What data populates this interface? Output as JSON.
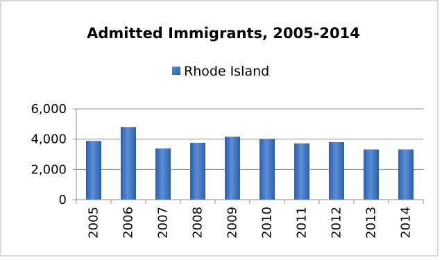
{
  "chart_data": {
    "type": "bar",
    "title": "Admitted Immigrants, 2005-2014",
    "xlabel": "",
    "ylabel": "",
    "categories": [
      "2005",
      "2006",
      "2007",
      "2008",
      "2009",
      "2010",
      "2011",
      "2012",
      "2013",
      "2014"
    ],
    "series": [
      {
        "name": "Rhode Island",
        "color": "#4472C4",
        "values": [
          3880,
          4800,
          3380,
          3760,
          4160,
          4020,
          3720,
          3800,
          3320,
          3320
        ]
      }
    ],
    "ylim": [
      0,
      6000
    ],
    "yticks": [
      0,
      2000,
      4000,
      6000
    ],
    "ytick_labels": [
      "0",
      "2,000",
      "4,000",
      "6,000"
    ],
    "grid": true,
    "legend_position": "top"
  }
}
